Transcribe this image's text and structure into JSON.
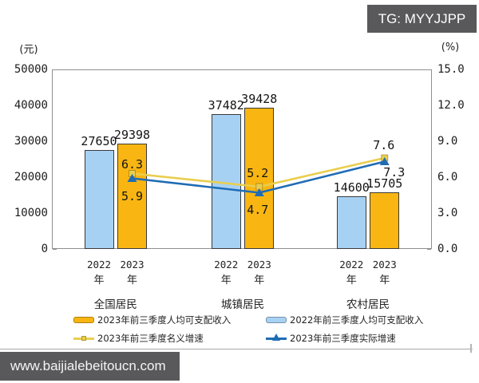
{
  "watermarks": {
    "telegram_badge": "TG: MYYJJPP",
    "site_url": "www.baijialebeitoucn.com"
  },
  "chart_data": {
    "type": "bar+line",
    "categories": [
      "全国居民",
      "城镇居民",
      "农村居民"
    ],
    "x_years": [
      "2022",
      "2023"
    ],
    "x_year_suffix": "年",
    "left_axis": {
      "title": "(元)",
      "range": [
        0,
        50000
      ],
      "ticks": [
        0,
        10000,
        20000,
        30000,
        40000,
        50000
      ]
    },
    "right_axis": {
      "title": "(%)",
      "range": [
        0,
        15
      ],
      "ticks": [
        "0.0",
        "3.0",
        "6.0",
        "9.0",
        "12.0",
        "15.0"
      ]
    },
    "series": [
      {
        "id": "income-2022",
        "name": "2022年前三季度人均可支配收入",
        "color": "#A7D1F3",
        "values": [
          27650,
          37482,
          14600
        ]
      },
      {
        "id": "income-2023",
        "name": "2023年前三季度人均可支配收入",
        "color": "#F9B612",
        "values": [
          29398,
          39428,
          15705
        ]
      }
    ],
    "line_series": [
      {
        "id": "nominal-growth",
        "name": "2023年前三季度名义增速",
        "color": "#E9CE4E",
        "marker": "square",
        "values": [
          6.3,
          5.2,
          7.6
        ]
      },
      {
        "id": "real-growth",
        "name": "2023年前三季度实际增速",
        "color": "#1F6CB5",
        "marker": "triangle",
        "values": [
          5.9,
          4.7,
          7.3
        ]
      }
    ],
    "grid": false,
    "legend_position": "bottom"
  }
}
